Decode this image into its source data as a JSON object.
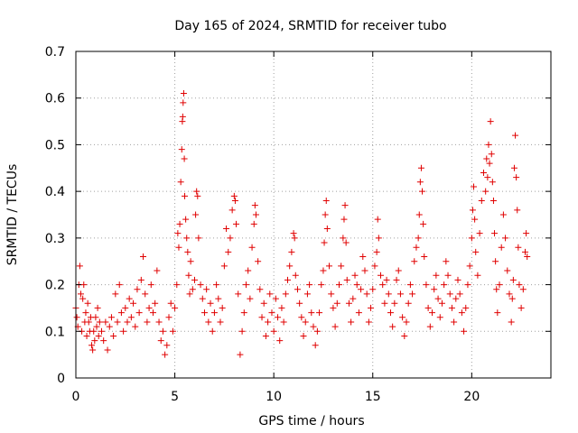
{
  "chart_data": {
    "type": "scatter",
    "title": "Day 165 of 2024, SRMTID for receiver tubo",
    "xlabel": "GPS time / hours",
    "ylabel": "SRMTID / TECUs",
    "xlim": [
      0,
      24
    ],
    "ylim": [
      0,
      0.7
    ],
    "xticks": [
      0,
      5,
      10,
      15,
      20
    ],
    "yticks": [
      0,
      0.1,
      0.2,
      0.3,
      0.4,
      0.5,
      0.6,
      0.7
    ],
    "xtick_labels": [
      "0",
      "5",
      "10",
      "15",
      "20"
    ],
    "ytick_labels": [
      "0",
      "0.1",
      "0.2",
      "0.3",
      "0.4",
      "0.5",
      "0.6",
      "0.7"
    ],
    "grid": true,
    "marker": "plus",
    "color": "#e00000",
    "series": [
      {
        "name": "SRMTID",
        "points": [
          [
            0.0,
            0.15
          ],
          [
            0.05,
            0.13
          ],
          [
            0.1,
            0.11
          ],
          [
            0.15,
            0.2
          ],
          [
            0.2,
            0.24
          ],
          [
            0.25,
            0.18
          ],
          [
            0.3,
            0.1
          ],
          [
            0.35,
            0.17
          ],
          [
            0.4,
            0.2
          ],
          [
            0.45,
            0.12
          ],
          [
            0.5,
            0.14
          ],
          [
            0.55,
            0.09
          ],
          [
            0.6,
            0.16
          ],
          [
            0.65,
            0.12
          ],
          [
            0.7,
            0.1
          ],
          [
            0.75,
            0.13
          ],
          [
            0.8,
            0.07
          ],
          [
            0.85,
            0.06
          ],
          [
            0.9,
            0.1
          ],
          [
            0.95,
            0.08
          ],
          [
            1.0,
            0.13
          ],
          [
            1.05,
            0.11
          ],
          [
            1.1,
            0.15
          ],
          [
            1.15,
            0.09
          ],
          [
            1.2,
            0.12
          ],
          [
            1.3,
            0.1
          ],
          [
            1.4,
            0.08
          ],
          [
            1.5,
            0.12
          ],
          [
            1.6,
            0.06
          ],
          [
            1.7,
            0.11
          ],
          [
            1.8,
            0.13
          ],
          [
            1.9,
            0.09
          ],
          [
            2.0,
            0.18
          ],
          [
            2.1,
            0.12
          ],
          [
            2.2,
            0.2
          ],
          [
            2.3,
            0.14
          ],
          [
            2.4,
            0.1
          ],
          [
            2.5,
            0.15
          ],
          [
            2.6,
            0.12
          ],
          [
            2.7,
            0.17
          ],
          [
            2.8,
            0.13
          ],
          [
            2.9,
            0.16
          ],
          [
            3.0,
            0.11
          ],
          [
            3.1,
            0.19
          ],
          [
            3.2,
            0.14
          ],
          [
            3.3,
            0.21
          ],
          [
            3.4,
            0.26
          ],
          [
            3.5,
            0.18
          ],
          [
            3.6,
            0.12
          ],
          [
            3.7,
            0.15
          ],
          [
            3.8,
            0.2
          ],
          [
            3.9,
            0.14
          ],
          [
            4.0,
            0.16
          ],
          [
            4.1,
            0.23
          ],
          [
            4.2,
            0.12
          ],
          [
            4.3,
            0.08
          ],
          [
            4.4,
            0.1
          ],
          [
            4.5,
            0.05
          ],
          [
            4.6,
            0.07
          ],
          [
            4.7,
            0.13
          ],
          [
            4.8,
            0.16
          ],
          [
            4.9,
            0.1
          ],
          [
            5.0,
            0.15
          ],
          [
            5.1,
            0.2
          ],
          [
            5.15,
            0.31
          ],
          [
            5.2,
            0.28
          ],
          [
            5.25,
            0.33
          ],
          [
            5.3,
            0.42
          ],
          [
            5.35,
            0.49
          ],
          [
            5.38,
            0.55
          ],
          [
            5.4,
            0.56
          ],
          [
            5.42,
            0.59
          ],
          [
            5.45,
            0.61
          ],
          [
            5.48,
            0.47
          ],
          [
            5.5,
            0.39
          ],
          [
            5.55,
            0.34
          ],
          [
            5.6,
            0.3
          ],
          [
            5.65,
            0.27
          ],
          [
            5.7,
            0.22
          ],
          [
            5.75,
            0.18
          ],
          [
            5.8,
            0.25
          ],
          [
            5.9,
            0.19
          ],
          [
            6.0,
            0.21
          ],
          [
            6.05,
            0.35
          ],
          [
            6.1,
            0.4
          ],
          [
            6.15,
            0.39
          ],
          [
            6.2,
            0.3
          ],
          [
            6.3,
            0.2
          ],
          [
            6.4,
            0.17
          ],
          [
            6.5,
            0.14
          ],
          [
            6.6,
            0.19
          ],
          [
            6.7,
            0.12
          ],
          [
            6.8,
            0.16
          ],
          [
            6.9,
            0.1
          ],
          [
            7.0,
            0.14
          ],
          [
            7.1,
            0.2
          ],
          [
            7.2,
            0.17
          ],
          [
            7.3,
            0.12
          ],
          [
            7.4,
            0.15
          ],
          [
            7.5,
            0.24
          ],
          [
            7.6,
            0.32
          ],
          [
            7.7,
            0.27
          ],
          [
            7.8,
            0.3
          ],
          [
            7.9,
            0.36
          ],
          [
            8.0,
            0.39
          ],
          [
            8.05,
            0.38
          ],
          [
            8.1,
            0.33
          ],
          [
            8.2,
            0.18
          ],
          [
            8.3,
            0.05
          ],
          [
            8.4,
            0.1
          ],
          [
            8.5,
            0.14
          ],
          [
            8.6,
            0.2
          ],
          [
            8.7,
            0.23
          ],
          [
            8.8,
            0.17
          ],
          [
            8.9,
            0.28
          ],
          [
            9.0,
            0.33
          ],
          [
            9.05,
            0.37
          ],
          [
            9.1,
            0.35
          ],
          [
            9.2,
            0.25
          ],
          [
            9.3,
            0.19
          ],
          [
            9.4,
            0.13
          ],
          [
            9.5,
            0.16
          ],
          [
            9.6,
            0.09
          ],
          [
            9.7,
            0.12
          ],
          [
            9.8,
            0.18
          ],
          [
            9.9,
            0.14
          ],
          [
            10.0,
            0.1
          ],
          [
            10.1,
            0.17
          ],
          [
            10.2,
            0.13
          ],
          [
            10.3,
            0.08
          ],
          [
            10.4,
            0.15
          ],
          [
            10.5,
            0.12
          ],
          [
            10.6,
            0.18
          ],
          [
            10.7,
            0.21
          ],
          [
            10.8,
            0.24
          ],
          [
            10.9,
            0.27
          ],
          [
            11.0,
            0.31
          ],
          [
            11.05,
            0.3
          ],
          [
            11.1,
            0.22
          ],
          [
            11.2,
            0.19
          ],
          [
            11.3,
            0.16
          ],
          [
            11.4,
            0.13
          ],
          [
            11.5,
            0.09
          ],
          [
            11.6,
            0.12
          ],
          [
            11.7,
            0.18
          ],
          [
            11.8,
            0.2
          ],
          [
            11.9,
            0.14
          ],
          [
            12.0,
            0.11
          ],
          [
            12.1,
            0.07
          ],
          [
            12.2,
            0.1
          ],
          [
            12.3,
            0.14
          ],
          [
            12.4,
            0.2
          ],
          [
            12.5,
            0.23
          ],
          [
            12.55,
            0.29
          ],
          [
            12.6,
            0.35
          ],
          [
            12.65,
            0.38
          ],
          [
            12.7,
            0.32
          ],
          [
            12.8,
            0.24
          ],
          [
            12.9,
            0.18
          ],
          [
            13.0,
            0.15
          ],
          [
            13.1,
            0.11
          ],
          [
            13.2,
            0.16
          ],
          [
            13.3,
            0.2
          ],
          [
            13.4,
            0.24
          ],
          [
            13.5,
            0.3
          ],
          [
            13.55,
            0.34
          ],
          [
            13.6,
            0.37
          ],
          [
            13.65,
            0.29
          ],
          [
            13.7,
            0.21
          ],
          [
            13.8,
            0.16
          ],
          [
            13.9,
            0.12
          ],
          [
            14.0,
            0.17
          ],
          [
            14.1,
            0.22
          ],
          [
            14.2,
            0.2
          ],
          [
            14.3,
            0.14
          ],
          [
            14.4,
            0.19
          ],
          [
            14.5,
            0.26
          ],
          [
            14.6,
            0.23
          ],
          [
            14.7,
            0.18
          ],
          [
            14.8,
            0.12
          ],
          [
            14.9,
            0.15
          ],
          [
            15.0,
            0.19
          ],
          [
            15.1,
            0.24
          ],
          [
            15.2,
            0.27
          ],
          [
            15.25,
            0.34
          ],
          [
            15.3,
            0.3
          ],
          [
            15.4,
            0.22
          ],
          [
            15.5,
            0.2
          ],
          [
            15.6,
            0.16
          ],
          [
            15.7,
            0.21
          ],
          [
            15.8,
            0.18
          ],
          [
            15.9,
            0.14
          ],
          [
            16.0,
            0.11
          ],
          [
            16.1,
            0.16
          ],
          [
            16.2,
            0.21
          ],
          [
            16.3,
            0.23
          ],
          [
            16.4,
            0.18
          ],
          [
            16.5,
            0.13
          ],
          [
            16.6,
            0.09
          ],
          [
            16.7,
            0.12
          ],
          [
            16.8,
            0.16
          ],
          [
            16.9,
            0.2
          ],
          [
            17.0,
            0.18
          ],
          [
            17.1,
            0.25
          ],
          [
            17.2,
            0.28
          ],
          [
            17.3,
            0.3
          ],
          [
            17.35,
            0.35
          ],
          [
            17.4,
            0.42
          ],
          [
            17.45,
            0.45
          ],
          [
            17.5,
            0.4
          ],
          [
            17.55,
            0.33
          ],
          [
            17.6,
            0.26
          ],
          [
            17.7,
            0.2
          ],
          [
            17.8,
            0.15
          ],
          [
            17.9,
            0.11
          ],
          [
            18.0,
            0.14
          ],
          [
            18.1,
            0.19
          ],
          [
            18.2,
            0.22
          ],
          [
            18.3,
            0.17
          ],
          [
            18.4,
            0.13
          ],
          [
            18.5,
            0.16
          ],
          [
            18.6,
            0.2
          ],
          [
            18.7,
            0.25
          ],
          [
            18.8,
            0.22
          ],
          [
            18.9,
            0.18
          ],
          [
            19.0,
            0.15
          ],
          [
            19.1,
            0.12
          ],
          [
            19.2,
            0.17
          ],
          [
            19.3,
            0.21
          ],
          [
            19.4,
            0.18
          ],
          [
            19.5,
            0.14
          ],
          [
            19.6,
            0.1
          ],
          [
            19.7,
            0.15
          ],
          [
            19.8,
            0.2
          ],
          [
            19.9,
            0.24
          ],
          [
            20.0,
            0.3
          ],
          [
            20.05,
            0.36
          ],
          [
            20.1,
            0.41
          ],
          [
            20.15,
            0.34
          ],
          [
            20.2,
            0.27
          ],
          [
            20.3,
            0.22
          ],
          [
            20.4,
            0.31
          ],
          [
            20.5,
            0.38
          ],
          [
            20.6,
            0.44
          ],
          [
            20.7,
            0.4
          ],
          [
            20.75,
            0.47
          ],
          [
            20.8,
            0.43
          ],
          [
            20.85,
            0.5
          ],
          [
            20.9,
            0.46
          ],
          [
            20.95,
            0.55
          ],
          [
            21.0,
            0.48
          ],
          [
            21.05,
            0.42
          ],
          [
            21.1,
            0.38
          ],
          [
            21.15,
            0.31
          ],
          [
            21.2,
            0.25
          ],
          [
            21.25,
            0.19
          ],
          [
            21.3,
            0.14
          ],
          [
            21.4,
            0.2
          ],
          [
            21.5,
            0.28
          ],
          [
            21.6,
            0.35
          ],
          [
            21.7,
            0.3
          ],
          [
            21.8,
            0.23
          ],
          [
            21.9,
            0.18
          ],
          [
            22.0,
            0.12
          ],
          [
            22.05,
            0.17
          ],
          [
            22.1,
            0.21
          ],
          [
            22.15,
            0.45
          ],
          [
            22.2,
            0.52
          ],
          [
            22.25,
            0.43
          ],
          [
            22.3,
            0.36
          ],
          [
            22.35,
            0.28
          ],
          [
            22.4,
            0.2
          ],
          [
            22.5,
            0.15
          ],
          [
            22.6,
            0.19
          ],
          [
            22.7,
            0.27
          ],
          [
            22.75,
            0.31
          ],
          [
            22.8,
            0.26
          ]
        ]
      }
    ]
  }
}
